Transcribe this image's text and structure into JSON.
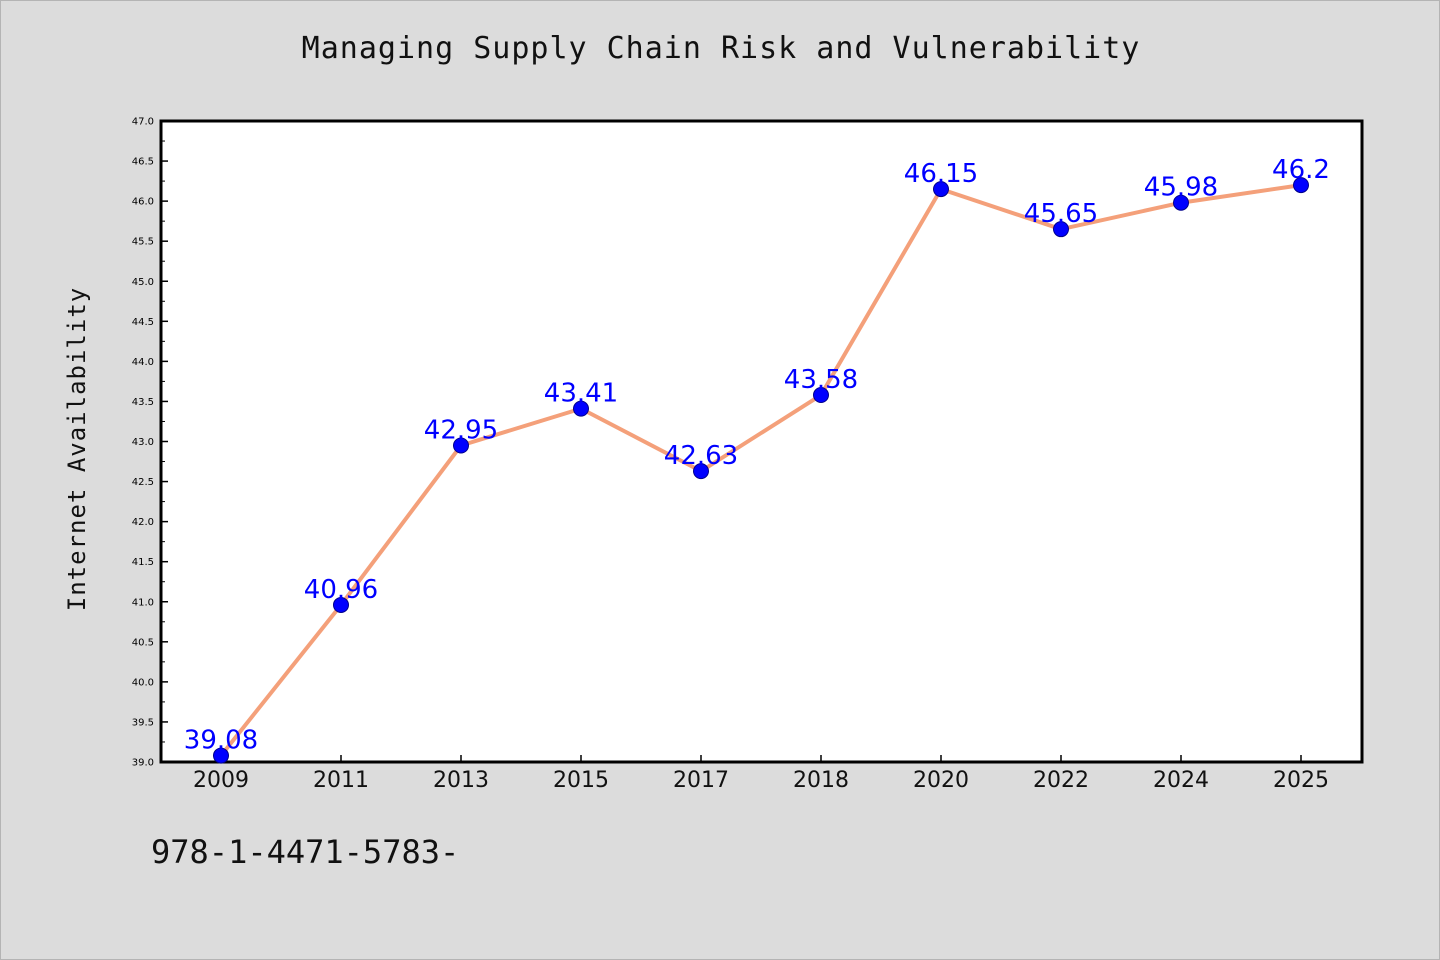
{
  "chart_data": {
    "type": "line",
    "title": "Managing Supply Chain Risk and Vulnerability",
    "xlabel": "",
    "ylabel": "Internet Availability",
    "categories": [
      "2009",
      "2011",
      "2013",
      "2015",
      "2017",
      "2018",
      "2020",
      "2022",
      "2024",
      "2025"
    ],
    "series": [
      {
        "values": [
          39.08,
          40.96,
          42.95,
          43.41,
          42.63,
          43.58,
          46.15,
          45.65,
          45.98,
          46.2
        ],
        "data_labels": [
          "39.08",
          "40.96",
          "42.95",
          "43.41",
          "42.63",
          "43.58",
          "46.15",
          "45.65",
          "45.98",
          "46.2"
        ],
        "line_color": "#f4a07a",
        "marker_color": "#0000ff",
        "label_color": "#0000ff"
      }
    ],
    "ylim": [
      39.0,
      47.0
    ],
    "yticks": [
      "39.0",
      "39.5",
      "40.0",
      "40.5",
      "41.0",
      "41.5",
      "42.0",
      "42.5",
      "43.0",
      "43.5",
      "44.0",
      "44.5",
      "45.0",
      "45.5",
      "46.0",
      "46.5",
      "47.0"
    ],
    "grid": false,
    "legend": "none"
  },
  "footnote": "978-1-4471-5783-",
  "colors": {
    "background": "#dcdcdc",
    "plot_background": "#ffffff",
    "axis": "#000000"
  }
}
